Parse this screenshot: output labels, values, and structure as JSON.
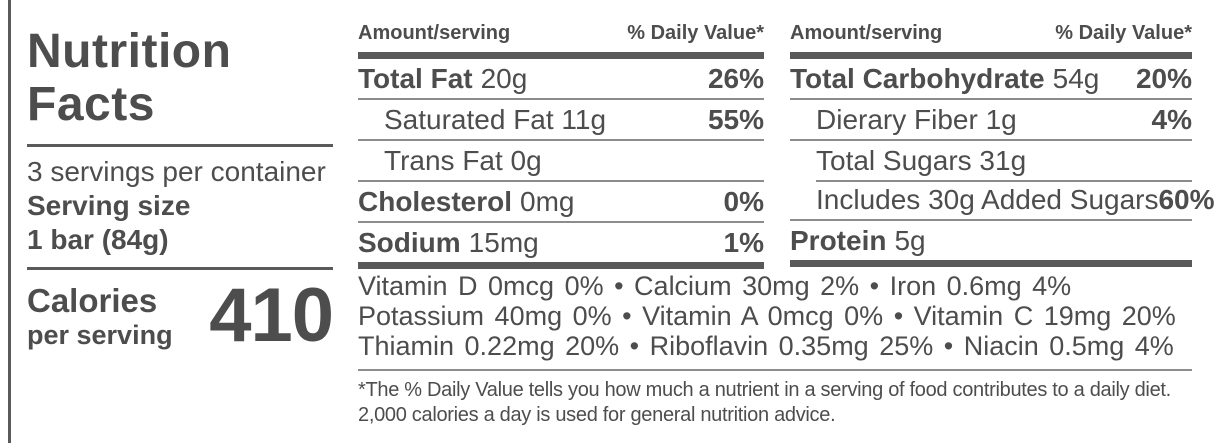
{
  "left_panel": {
    "title": "Nutrition Facts",
    "servings_per_container": "3 servings per container",
    "serving_size_label": "Serving size",
    "serving_size_value": "1 bar (84g)",
    "calories_label": "Calories",
    "calories_sublabel": "per serving",
    "calories_value": "410"
  },
  "columns": [
    {
      "header_amount": "Amount/serving",
      "header_dv": "% Daily Value*",
      "rows": [
        {
          "name": "Total Fat",
          "amount": "20g",
          "dv": "26%"
        },
        {
          "name": "Saturated Fat 11g",
          "amount": "",
          "dv": "55%"
        },
        {
          "name": "Trans Fat 0g",
          "amount": "",
          "dv": ""
        },
        {
          "name": "Cholesterol",
          "amount": "0mg",
          "dv": "0%"
        },
        {
          "name": "Sodium",
          "amount": "15mg",
          "dv": "1%"
        }
      ]
    },
    {
      "header_amount": "Amount/serving",
      "header_dv": "% Daily Value*",
      "rows": [
        {
          "name": "Total Carbohydrate",
          "amount": "54g",
          "dv": "20%"
        },
        {
          "name": "Dierary Fiber 1g",
          "amount": "",
          "dv": "4%"
        },
        {
          "name": "Total Sugars 31g",
          "amount": "",
          "dv": ""
        },
        {
          "name": "Includes 30g Added Sugars",
          "amount": "",
          "dv": "60%"
        },
        {
          "name": "Protein",
          "amount": "5g",
          "dv": ""
        }
      ]
    }
  ],
  "micronutrients": {
    "lines": [
      "Vitamin D 0mcg 0%  •  Calcium 30mg 2%  •  Iron 0.6mg 4%",
      "Potassium 40mg 0%  •  Vitamin A 0mcg 0%  •  Vitamin C 19mg 20%",
      "Thiamin 0.22mg 20%  •  Riboflavin 0.35mg 25%  •  Niacin 0.5mg 4%"
    ]
  },
  "footnote": {
    "line1": "*The % Daily Value tells you how much a nutrient in a serving of food contributes to a daily diet.",
    "line2": "2,000 calories a day is used for general nutrition advice."
  },
  "colors": {
    "text": "#4d4d4d",
    "rule_thin": "#8c8c8c",
    "rule_thick": "#595959",
    "background": "#ffffff"
  }
}
